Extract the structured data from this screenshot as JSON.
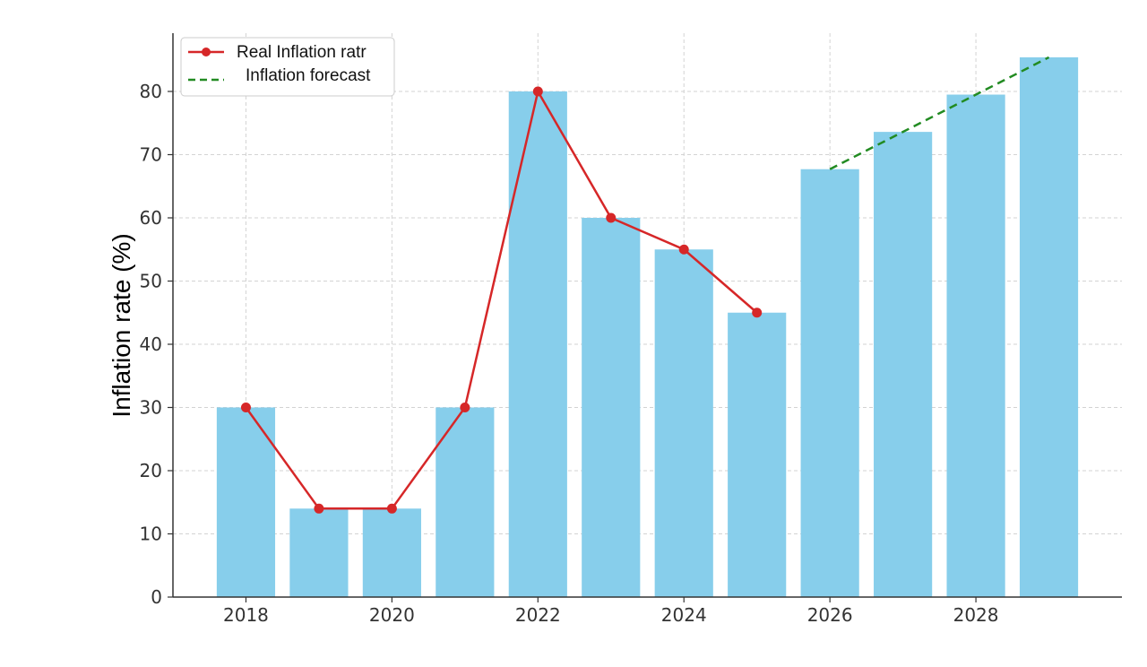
{
  "chart_data": {
    "type": "bar",
    "title": "",
    "xlabel": "",
    "ylabel": "Inflation rate (%)",
    "x": [
      2018,
      2019,
      2020,
      2021,
      2022,
      2023,
      2024,
      2025,
      2026,
      2027,
      2028,
      2029
    ],
    "xticks": [
      "2018",
      "2020",
      "2022",
      "2024",
      "2026",
      "2028"
    ],
    "xlim": [
      2017,
      2030
    ],
    "ylim": [
      0,
      90
    ],
    "yticks": [
      "0",
      "10",
      "20",
      "30",
      "40",
      "50",
      "60",
      "70",
      "80"
    ],
    "grid": true,
    "legend_position": "top-left",
    "bars": {
      "values": [
        30,
        14,
        14,
        30,
        80,
        60,
        55,
        45,
        67.7,
        73.6,
        79.5,
        85.4
      ],
      "color": "#87ceeb"
    },
    "series": [
      {
        "name": "Real Inflation ratr",
        "type": "line",
        "marker": "circle",
        "color": "#d62728",
        "x": [
          2018,
          2019,
          2020,
          2021,
          2022,
          2023,
          2024,
          2025
        ],
        "values": [
          30,
          14,
          14,
          30,
          80,
          60,
          55,
          45
        ]
      },
      {
        "name": "Inflation forecast",
        "type": "line",
        "dashed": true,
        "color": "#228b22",
        "x": [
          2026,
          2029
        ],
        "values": [
          67.7,
          85.4
        ]
      }
    ]
  }
}
